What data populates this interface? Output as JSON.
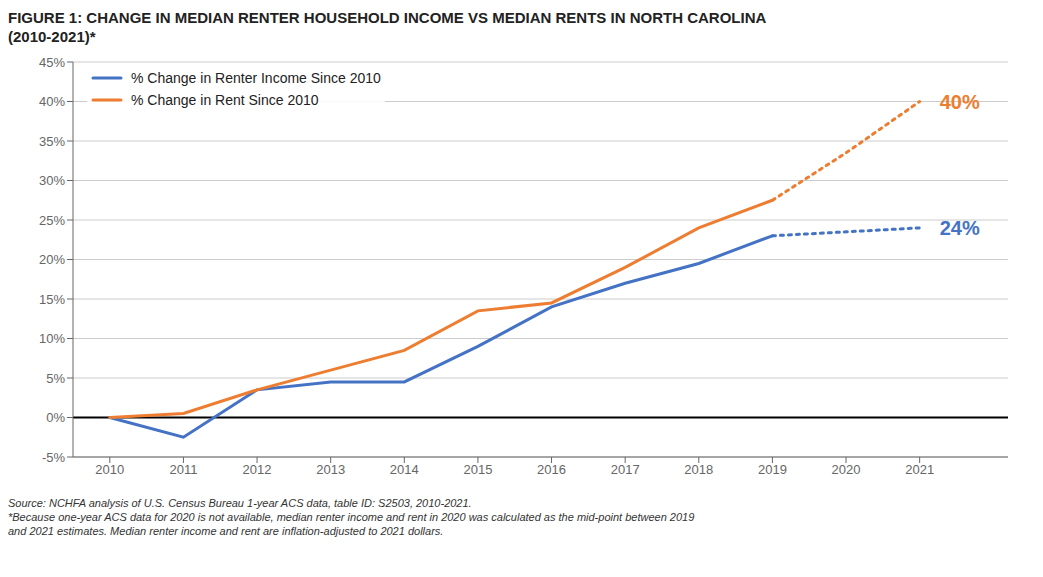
{
  "chart_data": {
    "type": "line",
    "title": "FIGURE 1: CHANGE IN MEDIAN RENTER HOUSEHOLD INCOME VS MEDIAN RENTS IN NORTH CAROLINA\n(2010-2021)*",
    "x": [
      2010,
      2011,
      2012,
      2013,
      2014,
      2015,
      2016,
      2017,
      2018,
      2019,
      2020,
      2021
    ],
    "xlim": [
      2009.5,
      2022.2
    ],
    "xticks": [
      2010,
      2011,
      2012,
      2013,
      2014,
      2015,
      2016,
      2017,
      2018,
      2019,
      2020,
      2021
    ],
    "ylim": [
      -5,
      45
    ],
    "yticks": [
      {
        "value": -5,
        "label": "-5%"
      },
      {
        "value": 0,
        "label": "0%"
      },
      {
        "value": 5,
        "label": "5%"
      },
      {
        "value": 10,
        "label": "10%"
      },
      {
        "value": 15,
        "label": "15%"
      },
      {
        "value": 20,
        "label": "20%"
      },
      {
        "value": 25,
        "label": "25%"
      },
      {
        "value": 30,
        "label": "30%"
      },
      {
        "value": 35,
        "label": "35%"
      },
      {
        "value": 40,
        "label": "40%"
      },
      {
        "value": 45,
        "label": "45%"
      }
    ],
    "grid": true,
    "legend": "upper left",
    "series": [
      {
        "name": "% Change in Renter Income Since 2010",
        "color": "#4472C4",
        "line_style": "solid",
        "values": [
          0,
          -2.5,
          3.5,
          4.5,
          4.5,
          9.0,
          14.0,
          17.0,
          19.5,
          23.0,
          null,
          null
        ]
      },
      {
        "name": "% Change in Rent Since 2010",
        "color": "#ED7D31",
        "line_style": "solid",
        "values": [
          0,
          0.5,
          3.5,
          6.0,
          8.5,
          13.5,
          14.5,
          19.0,
          24.0,
          27.5,
          null,
          null
        ]
      },
      {
        "name": "% Change in Renter Income Since 2010",
        "color": "#4472C4",
        "line_style": "dotted",
        "values": [
          null,
          null,
          null,
          null,
          null,
          null,
          null,
          null,
          null,
          23.0,
          23.5,
          24.0
        ]
      },
      {
        "name": "% Change in Rent Since 2010",
        "color": "#ED7D31",
        "line_style": "dotted",
        "values": [
          null,
          null,
          null,
          null,
          null,
          null,
          null,
          null,
          null,
          27.5,
          33.5,
          40.0
        ]
      }
    ],
    "annotations": [
      {
        "text": "40%",
        "x": 2021,
        "y": 40.0,
        "color": "#ED7D31"
      },
      {
        "text": "24%",
        "x": 2021,
        "y": 24.0,
        "color": "#4472C4"
      }
    ],
    "source": "Source: NCHFA analysis of U.S. Census Bureau 1-year ACS data, table ID: S2503, 2010-2021.\n*Because one-year ACS data for 2020 is not available, median renter income and rent in 2020 was calculated as the mid-point between 2019\nand 2021 estimates. Median renter income and rent are inflation-adjusted to 2021 dollars."
  }
}
